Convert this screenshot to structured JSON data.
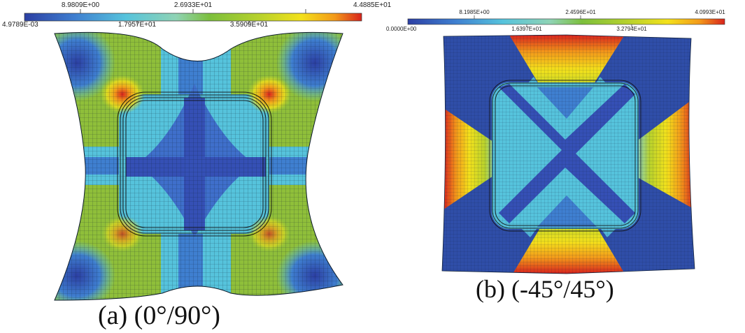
{
  "panel_a": {
    "colorbar_top_labels": [
      "8.9809E+00",
      "2.6933E+01",
      "4.4885E+01"
    ],
    "colorbar_bottom_labels": [
      "4.9789E-03",
      "1.7957E+01",
      "3.5909E+01"
    ],
    "caption": "(a) (0°/90°)"
  },
  "panel_b": {
    "colorbar_top_labels": [
      "8.1985E+00",
      "2.4596E+01",
      "4.0993E+01"
    ],
    "colorbar_bottom_labels": [
      "0.0000E+00",
      "1.6397E+01",
      "3.2794E+01"
    ],
    "caption": "(b) (-45°/45°)"
  },
  "colormap": [
    "#2c3fa3",
    "#3f7fd0",
    "#56c3dc",
    "#8fd3b4",
    "#7cbf3c",
    "#b9d22c",
    "#f3e11b",
    "#f39a1a",
    "#d8231c"
  ]
}
